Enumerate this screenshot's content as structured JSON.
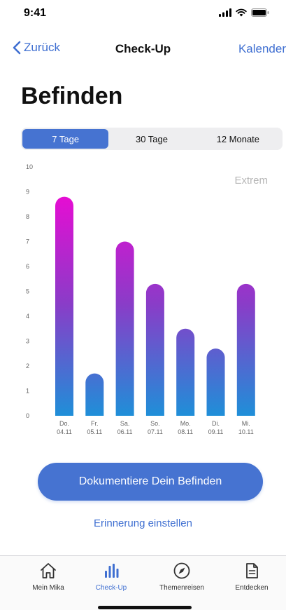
{
  "status": {
    "time": "9:41"
  },
  "nav": {
    "back_label": "Zurück",
    "title": "Check-Up",
    "right_label": "Kalender"
  },
  "page": {
    "title": "Befinden"
  },
  "segments": [
    {
      "label": "7 Tage",
      "active": true
    },
    {
      "label": "30 Tage",
      "active": false
    },
    {
      "label": "12 Monate",
      "active": false
    }
  ],
  "chart_data": {
    "type": "bar",
    "ylim": [
      0,
      10
    ],
    "yticks": [
      0,
      1,
      2,
      3,
      4,
      5,
      6,
      7,
      8,
      9,
      10
    ],
    "annotation": "Extrem",
    "categories": [
      {
        "day": "Do.",
        "date": "04.11"
      },
      {
        "day": "Fr.",
        "date": "05.11"
      },
      {
        "day": "Sa.",
        "date": "06.11"
      },
      {
        "day": "So.",
        "date": "07.11"
      },
      {
        "day": "Mo.",
        "date": "08.11"
      },
      {
        "day": "Di.",
        "date": "09.11"
      },
      {
        "day": "Mi.",
        "date": "10.11"
      }
    ],
    "values": [
      8.8,
      1.7,
      7.0,
      5.3,
      3.5,
      2.7,
      5.3
    ],
    "gradient": {
      "low": "#1f8fd8",
      "high": "#ff00d6"
    }
  },
  "actions": {
    "primary": "Dokumentiere Dein Befinden",
    "secondary": "Erinnerung einstellen"
  },
  "tabs": [
    {
      "label": "Mein Mika",
      "icon": "home-icon",
      "active": false
    },
    {
      "label": "Check-Up",
      "icon": "bar-chart-icon",
      "active": true
    },
    {
      "label": "Themenreisen",
      "icon": "compass-icon",
      "active": false
    },
    {
      "label": "Entdecken",
      "icon": "document-icon",
      "active": false
    }
  ],
  "colors": {
    "accent": "#4673d1",
    "link": "#3f6fd1"
  }
}
